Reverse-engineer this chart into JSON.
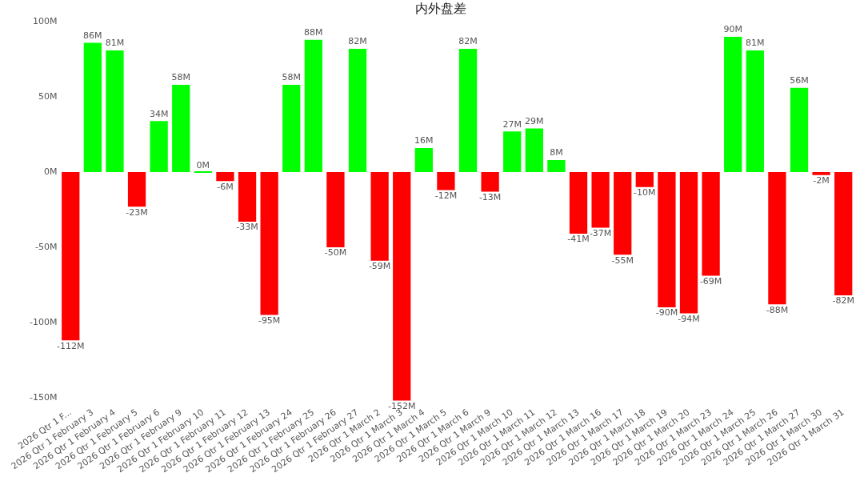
{
  "chart_data": {
    "type": "bar",
    "title": "内外盘差",
    "categories": [
      "2026 Qtr 1 F...",
      "2026 Qtr 1 February 3",
      "2026 Qtr 1 February 4",
      "2026 Qtr 1 February 5",
      "2026 Qtr 1 February 6",
      "2026 Qtr 1 February 9",
      "2026 Qtr 1 February 10",
      "2026 Qtr 1 February 11",
      "2026 Qtr 1 February 12",
      "2026 Qtr 1 February 13",
      "2026 Qtr 1 February 24",
      "2026 Qtr 1 February 25",
      "2026 Qtr 1 February 26",
      "2026 Qtr 1 February 27",
      "2026 Qtr 1 March 2",
      "2026 Qtr 1 March 3",
      "2026 Qtr 1 March 4",
      "2026 Qtr 1 March 5",
      "2026 Qtr 1 March 6",
      "2026 Qtr 1 March 9",
      "2026 Qtr 1 March 10",
      "2026 Qtr 1 March 11",
      "2026 Qtr 1 March 12",
      "2026 Qtr 1 March 13",
      "2026 Qtr 1 March 16",
      "2026 Qtr 1 March 17",
      "2026 Qtr 1 March 18",
      "2026 Qtr 1 March 19",
      "2026 Qtr 1 March 20",
      "2026 Qtr 1 March 23",
      "2026 Qtr 1 March 24",
      "2026 Qtr 1 March 25",
      "2026 Qtr 1 March 26",
      "2026 Qtr 1 March 27",
      "2026 Qtr 1 March 30",
      "2026 Qtr 1 March 31"
    ],
    "values": [
      -112,
      86,
      81,
      -23,
      34,
      58,
      0,
      -6,
      -33,
      -95,
      58,
      88,
      -50,
      82,
      -59,
      -152,
      16,
      -12,
      82,
      -13,
      27,
      29,
      8,
      -41,
      -37,
      -55,
      -10,
      -90,
      -94,
      -69,
      90,
      81,
      -88,
      56,
      -2,
      -82
    ],
    "value_labels": [
      "-112M",
      "86M",
      "81M",
      "-23M",
      "34M",
      "58M",
      "0M",
      "-6M",
      "-33M",
      "-95M",
      "58M",
      "88M",
      "-50M",
      "82M",
      "-59M",
      "-152M",
      "16M",
      "-12M",
      "82M",
      "-13M",
      "27M",
      "29M",
      "8M",
      "-41M",
      "-37M",
      "-55M",
      "-10M",
      "-90M",
      "-94M",
      "-69M",
      "90M",
      "81M",
      "-88M",
      "56M",
      "-2M",
      "-82M"
    ],
    "colors": [
      "#ff0000",
      "#00ff00",
      "#00ff00",
      "#ff0000",
      "#00ff00",
      "#00ff00",
      "#00ff00",
      "#ff0000",
      "#ff0000",
      "#ff0000",
      "#00ff00",
      "#00ff00",
      "#ff0000",
      "#00ff00",
      "#ff0000",
      "#ff0000",
      "#00ff00",
      "#ff0000",
      "#00ff00",
      "#ff0000",
      "#00ff00",
      "#00ff00",
      "#00ff00",
      "#ff0000",
      "#ff0000",
      "#ff0000",
      "#ff0000",
      "#ff0000",
      "#ff0000",
      "#ff0000",
      "#00ff00",
      "#00ff00",
      "#ff0000",
      "#00ff00",
      "#ff0000",
      "#ff0000"
    ],
    "ylim": [
      -155,
      100
    ],
    "yticks": [
      {
        "value": -150,
        "label": "-150M"
      },
      {
        "value": -100,
        "label": "-100M"
      },
      {
        "value": -50,
        "label": "-50M"
      },
      {
        "value": 0,
        "label": "0M"
      },
      {
        "value": 50,
        "label": "50M"
      },
      {
        "value": 100,
        "label": "100M"
      }
    ],
    "grid": false,
    "legend": false
  }
}
